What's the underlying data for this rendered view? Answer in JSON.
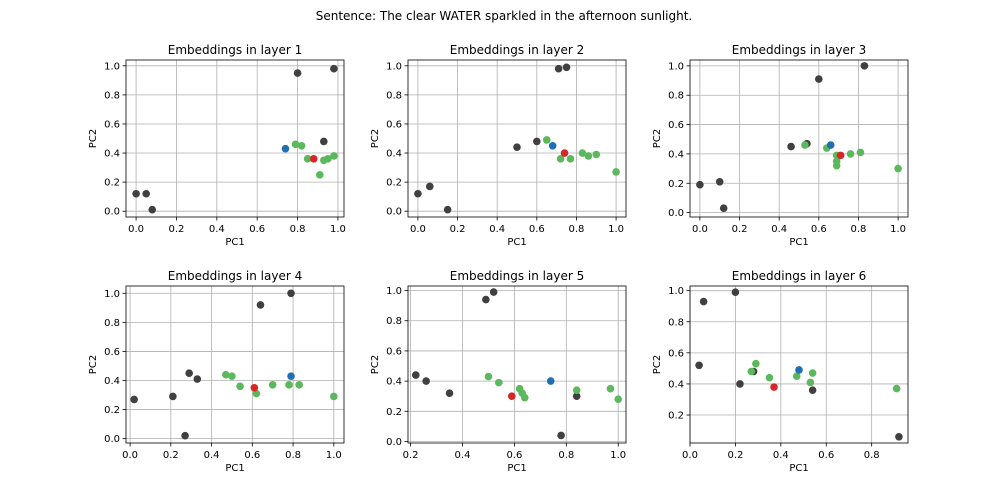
{
  "title": "Sentence: The clear WATER sparkled in the afternoon sunlight.",
  "colors": {
    "context": "#404040",
    "related": "#5cb85c",
    "target": "#1f6fb4",
    "highlight": "#d62728"
  },
  "chart_data": [
    {
      "type": "scatter",
      "title": "Embeddings in layer 1",
      "xlabel": "PC1",
      "ylabel": "PC2",
      "xlim": [
        -0.05,
        1.03
      ],
      "ylim": [
        -0.04,
        1.04
      ],
      "xticks": [
        "0.0",
        "0.2",
        "0.4",
        "0.6",
        "0.8",
        "1.0"
      ],
      "yticks": [
        "0.0",
        "0.2",
        "0.4",
        "0.6",
        "0.8",
        "1.0"
      ],
      "points": [
        {
          "x": 0.0,
          "y": 0.12,
          "group": "context"
        },
        {
          "x": 0.05,
          "y": 0.12,
          "group": "context"
        },
        {
          "x": 0.08,
          "y": 0.01,
          "group": "context"
        },
        {
          "x": 0.8,
          "y": 0.95,
          "group": "context"
        },
        {
          "x": 0.98,
          "y": 0.98,
          "group": "context"
        },
        {
          "x": 0.93,
          "y": 0.48,
          "group": "context"
        },
        {
          "x": 0.79,
          "y": 0.46,
          "group": "related"
        },
        {
          "x": 0.82,
          "y": 0.45,
          "group": "related"
        },
        {
          "x": 0.85,
          "y": 0.36,
          "group": "related"
        },
        {
          "x": 0.91,
          "y": 0.25,
          "group": "related"
        },
        {
          "x": 0.93,
          "y": 0.35,
          "group": "related"
        },
        {
          "x": 0.95,
          "y": 0.36,
          "group": "related"
        },
        {
          "x": 0.98,
          "y": 0.38,
          "group": "related"
        },
        {
          "x": 0.74,
          "y": 0.43,
          "group": "target"
        },
        {
          "x": 0.88,
          "y": 0.36,
          "group": "highlight"
        }
      ]
    },
    {
      "type": "scatter",
      "title": "Embeddings in layer 2",
      "xlabel": "PC1",
      "ylabel": "PC2",
      "xlim": [
        -0.05,
        1.05
      ],
      "ylim": [
        -0.04,
        1.04
      ],
      "xticks": [
        "0.0",
        "0.2",
        "0.4",
        "0.6",
        "0.8",
        "1.0"
      ],
      "yticks": [
        "0.0",
        "0.2",
        "0.4",
        "0.6",
        "0.8",
        "1.0"
      ],
      "points": [
        {
          "x": 0.0,
          "y": 0.12,
          "group": "context"
        },
        {
          "x": 0.06,
          "y": 0.17,
          "group": "context"
        },
        {
          "x": 0.15,
          "y": 0.01,
          "group": "context"
        },
        {
          "x": 0.5,
          "y": 0.44,
          "group": "context"
        },
        {
          "x": 0.6,
          "y": 0.48,
          "group": "context"
        },
        {
          "x": 0.71,
          "y": 0.98,
          "group": "context"
        },
        {
          "x": 0.75,
          "y": 0.99,
          "group": "context"
        },
        {
          "x": 0.65,
          "y": 0.49,
          "group": "related"
        },
        {
          "x": 0.72,
          "y": 0.36,
          "group": "related"
        },
        {
          "x": 0.77,
          "y": 0.36,
          "group": "related"
        },
        {
          "x": 0.83,
          "y": 0.4,
          "group": "related"
        },
        {
          "x": 0.86,
          "y": 0.38,
          "group": "related"
        },
        {
          "x": 0.9,
          "y": 0.39,
          "group": "related"
        },
        {
          "x": 1.0,
          "y": 0.27,
          "group": "related"
        },
        {
          "x": 0.68,
          "y": 0.45,
          "group": "target"
        },
        {
          "x": 0.74,
          "y": 0.4,
          "group": "highlight"
        }
      ]
    },
    {
      "type": "scatter",
      "title": "Embeddings in layer 3",
      "xlabel": "PC1",
      "ylabel": "PC2",
      "xlim": [
        -0.05,
        1.05
      ],
      "ylim": [
        -0.03,
        1.04
      ],
      "xticks": [
        "0.0",
        "0.2",
        "0.4",
        "0.6",
        "0.8",
        "1.0"
      ],
      "yticks": [
        "0.0",
        "0.2",
        "0.4",
        "0.6",
        "0.8",
        "1.0"
      ],
      "points": [
        {
          "x": 0.0,
          "y": 0.19,
          "group": "context"
        },
        {
          "x": 0.1,
          "y": 0.21,
          "group": "context"
        },
        {
          "x": 0.12,
          "y": 0.03,
          "group": "context"
        },
        {
          "x": 0.46,
          "y": 0.45,
          "group": "context"
        },
        {
          "x": 0.54,
          "y": 0.47,
          "group": "context"
        },
        {
          "x": 0.6,
          "y": 0.91,
          "group": "context"
        },
        {
          "x": 0.83,
          "y": 1.0,
          "group": "context"
        },
        {
          "x": 0.53,
          "y": 0.46,
          "group": "related"
        },
        {
          "x": 0.64,
          "y": 0.44,
          "group": "related"
        },
        {
          "x": 0.69,
          "y": 0.32,
          "group": "related"
        },
        {
          "x": 0.69,
          "y": 0.35,
          "group": "related"
        },
        {
          "x": 0.69,
          "y": 0.39,
          "group": "related"
        },
        {
          "x": 0.76,
          "y": 0.4,
          "group": "related"
        },
        {
          "x": 0.81,
          "y": 0.41,
          "group": "related"
        },
        {
          "x": 1.0,
          "y": 0.3,
          "group": "related"
        },
        {
          "x": 0.66,
          "y": 0.46,
          "group": "target"
        },
        {
          "x": 0.71,
          "y": 0.39,
          "group": "highlight"
        }
      ]
    },
    {
      "type": "scatter",
      "title": "Embeddings in layer 4",
      "xlabel": "PC1",
      "ylabel": "PC2",
      "xlim": [
        -0.02,
        1.05
      ],
      "ylim": [
        -0.03,
        1.05
      ],
      "xticks": [
        "0.0",
        "0.2",
        "0.4",
        "0.6",
        "0.8",
        "1.0"
      ],
      "yticks": [
        "0.0",
        "0.2",
        "0.4",
        "0.6",
        "0.8",
        "1.0"
      ],
      "points": [
        {
          "x": 0.02,
          "y": 0.27,
          "group": "context"
        },
        {
          "x": 0.21,
          "y": 0.29,
          "group": "context"
        },
        {
          "x": 0.27,
          "y": 0.02,
          "group": "context"
        },
        {
          "x": 0.29,
          "y": 0.45,
          "group": "context"
        },
        {
          "x": 0.33,
          "y": 0.41,
          "group": "context"
        },
        {
          "x": 0.64,
          "y": 0.92,
          "group": "context"
        },
        {
          "x": 0.79,
          "y": 1.0,
          "group": "context"
        },
        {
          "x": 0.47,
          "y": 0.44,
          "group": "related"
        },
        {
          "x": 0.5,
          "y": 0.43,
          "group": "related"
        },
        {
          "x": 0.54,
          "y": 0.36,
          "group": "related"
        },
        {
          "x": 0.62,
          "y": 0.31,
          "group": "related"
        },
        {
          "x": 0.7,
          "y": 0.37,
          "group": "related"
        },
        {
          "x": 0.78,
          "y": 0.37,
          "group": "related"
        },
        {
          "x": 0.83,
          "y": 0.37,
          "group": "related"
        },
        {
          "x": 1.0,
          "y": 0.29,
          "group": "related"
        },
        {
          "x": 0.79,
          "y": 0.43,
          "group": "target"
        },
        {
          "x": 0.61,
          "y": 0.35,
          "group": "highlight"
        }
      ]
    },
    {
      "type": "scatter",
      "title": "Embeddings in layer 5",
      "xlabel": "PC1",
      "ylabel": "PC2",
      "xlim": [
        0.19,
        1.03
      ],
      "ylim": [
        -0.01,
        1.03
      ],
      "xticks": [
        "0.2",
        "0.4",
        "0.6",
        "0.8",
        "1.0"
      ],
      "yticks": [
        "0.0",
        "0.2",
        "0.4",
        "0.6",
        "0.8",
        "1.0"
      ],
      "points": [
        {
          "x": 0.22,
          "y": 0.44,
          "group": "context"
        },
        {
          "x": 0.26,
          "y": 0.4,
          "group": "context"
        },
        {
          "x": 0.35,
          "y": 0.32,
          "group": "context"
        },
        {
          "x": 0.49,
          "y": 0.94,
          "group": "context"
        },
        {
          "x": 0.52,
          "y": 0.99,
          "group": "context"
        },
        {
          "x": 0.78,
          "y": 0.04,
          "group": "context"
        },
        {
          "x": 0.84,
          "y": 0.3,
          "group": "context"
        },
        {
          "x": 0.5,
          "y": 0.43,
          "group": "related"
        },
        {
          "x": 0.54,
          "y": 0.39,
          "group": "related"
        },
        {
          "x": 0.62,
          "y": 0.35,
          "group": "related"
        },
        {
          "x": 0.63,
          "y": 0.32,
          "group": "related"
        },
        {
          "x": 0.64,
          "y": 0.29,
          "group": "related"
        },
        {
          "x": 0.84,
          "y": 0.34,
          "group": "related"
        },
        {
          "x": 0.97,
          "y": 0.35,
          "group": "related"
        },
        {
          "x": 1.0,
          "y": 0.28,
          "group": "related"
        },
        {
          "x": 0.74,
          "y": 0.4,
          "group": "target"
        },
        {
          "x": 0.59,
          "y": 0.3,
          "group": "highlight"
        }
      ]
    },
    {
      "type": "scatter",
      "title": "Embeddings in layer 6",
      "xlabel": "PC1",
      "ylabel": "PC2",
      "xlim": [
        0.0,
        0.96
      ],
      "ylim": [
        0.02,
        1.03
      ],
      "xticks": [
        "0.0",
        "0.2",
        "0.4",
        "0.6",
        "0.8"
      ],
      "yticks": [
        "0.2",
        "0.4",
        "0.6",
        "0.8",
        "1.0"
      ],
      "points": [
        {
          "x": 0.04,
          "y": 0.52,
          "group": "context"
        },
        {
          "x": 0.06,
          "y": 0.93,
          "group": "context"
        },
        {
          "x": 0.2,
          "y": 0.99,
          "group": "context"
        },
        {
          "x": 0.22,
          "y": 0.4,
          "group": "context"
        },
        {
          "x": 0.28,
          "y": 0.48,
          "group": "context"
        },
        {
          "x": 0.54,
          "y": 0.36,
          "group": "context"
        },
        {
          "x": 0.92,
          "y": 0.06,
          "group": "context"
        },
        {
          "x": 0.27,
          "y": 0.48,
          "group": "related"
        },
        {
          "x": 0.29,
          "y": 0.53,
          "group": "related"
        },
        {
          "x": 0.35,
          "y": 0.44,
          "group": "related"
        },
        {
          "x": 0.47,
          "y": 0.45,
          "group": "related"
        },
        {
          "x": 0.53,
          "y": 0.41,
          "group": "related"
        },
        {
          "x": 0.54,
          "y": 0.47,
          "group": "related"
        },
        {
          "x": 0.91,
          "y": 0.37,
          "group": "related"
        },
        {
          "x": 0.48,
          "y": 0.49,
          "group": "target"
        },
        {
          "x": 0.37,
          "y": 0.38,
          "group": "highlight"
        }
      ]
    }
  ]
}
